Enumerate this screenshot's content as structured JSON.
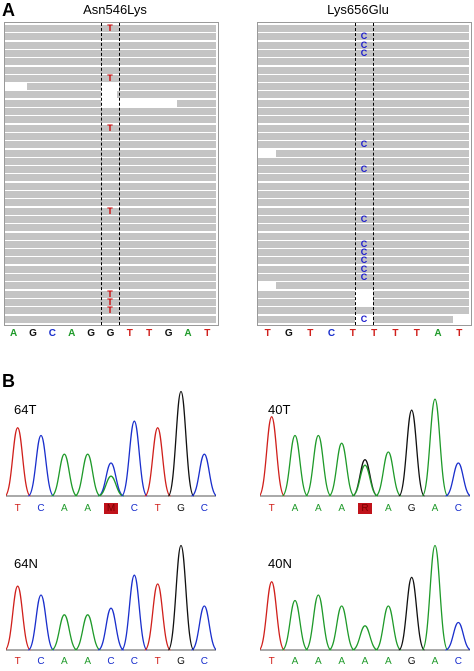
{
  "panel_a": {
    "letter": "A",
    "left": {
      "title": "Asn546Lys",
      "mismatch_base": "T",
      "mismatch_color": "#cc0000",
      "ref_seq": [
        "A",
        "G",
        "C",
        "A",
        "G",
        "G",
        "T",
        "T",
        "G",
        "A",
        "T"
      ]
    },
    "right": {
      "title": "Lys656Glu",
      "mismatch_base": "C",
      "mismatch_color": "#1a1acc",
      "ref_seq": [
        "T",
        "G",
        "T",
        "C",
        "T",
        "T",
        "T",
        "T",
        "A",
        "T"
      ]
    }
  },
  "panel_b": {
    "letter": "B",
    "traces": [
      {
        "label": "64T",
        "bases": [
          "T",
          "C",
          "A",
          "A",
          "M",
          "C",
          "T",
          "G",
          "C"
        ]
      },
      {
        "label": "40T",
        "bases": [
          "T",
          "A",
          "A",
          "A",
          "R",
          "A",
          "G",
          "A",
          "C"
        ]
      },
      {
        "label": "64N",
        "bases": [
          "T",
          "C",
          "A",
          "A",
          "C",
          "C",
          "T",
          "G",
          "C"
        ]
      },
      {
        "label": "40N",
        "bases": [
          "T",
          "A",
          "A",
          "A",
          "A",
          "A",
          "G",
          "A",
          "C"
        ]
      }
    ]
  },
  "colors": {
    "A": "#1f9a2a",
    "C": "#1a2fcc",
    "G": "#111111",
    "T": "#d0201c",
    "highlight": "#c0121a",
    "read": "#c4c4c4"
  }
}
